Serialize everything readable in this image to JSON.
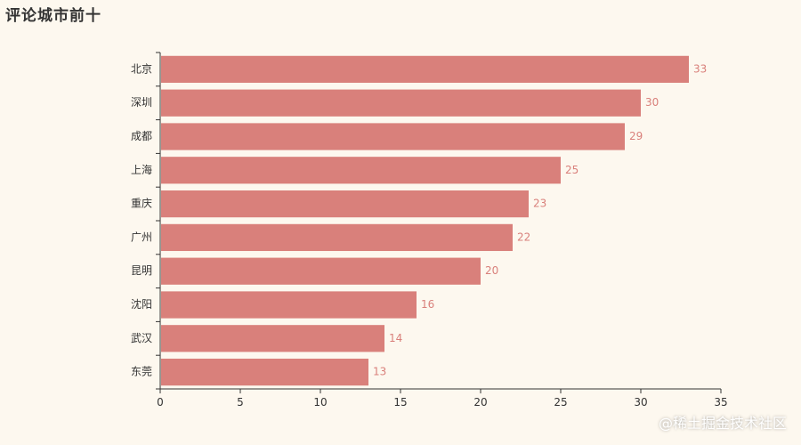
{
  "chart_data": {
    "type": "bar",
    "orientation": "horizontal",
    "title": "评论城市前十",
    "categories": [
      "北京",
      "深圳",
      "成都",
      "上海",
      "重庆",
      "广州",
      "昆明",
      "沈阳",
      "武汉",
      "东莞"
    ],
    "values": [
      33,
      30,
      29,
      25,
      23,
      22,
      20,
      16,
      14,
      13
    ],
    "xlim": [
      0,
      35
    ],
    "xticks": [
      0,
      5,
      10,
      15,
      20,
      25,
      30,
      35
    ],
    "xlabel": "",
    "ylabel": "",
    "grid": false,
    "data_labels": true,
    "bar_color": "#d9807b",
    "label_color": "#d9807b",
    "axis_color": "#333333",
    "background": "#fdf8ef"
  },
  "watermark": "@稀土掘金技术社区"
}
